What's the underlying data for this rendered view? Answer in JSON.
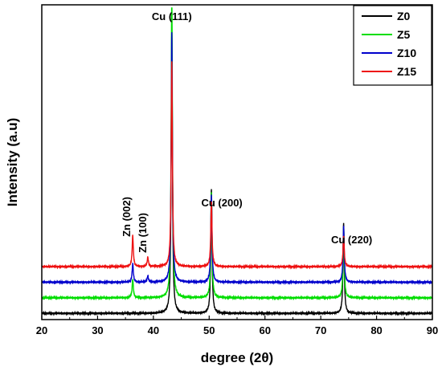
{
  "chart_data": {
    "type": "line",
    "xlabel": "degree (2θ)",
    "ylabel": "Intensity (a.u)",
    "xlim": [
      20,
      90
    ],
    "xticks": [
      20,
      30,
      40,
      50,
      60,
      70,
      80,
      90
    ],
    "y_ticks_shown": false,
    "grid": false,
    "legend_position": "top-right",
    "series": [
      {
        "name": "Z0",
        "color": "#000000",
        "baseline": 0.02,
        "peaks": [
          {
            "x": 43.3,
            "h": 0.92
          },
          {
            "x": 50.4,
            "h": 0.4
          },
          {
            "x": 74.1,
            "h": 0.29
          }
        ]
      },
      {
        "name": "Z5",
        "color": "#00dd00",
        "baseline": 0.07,
        "peaks": [
          {
            "x": 36.3,
            "h": 0.06
          },
          {
            "x": 43.3,
            "h": 1.0
          },
          {
            "x": 50.4,
            "h": 0.34
          },
          {
            "x": 74.1,
            "h": 0.23
          }
        ]
      },
      {
        "name": "Z10",
        "color": "#0000cc",
        "baseline": 0.12,
        "peaks": [
          {
            "x": 36.3,
            "h": 0.06
          },
          {
            "x": 39.0,
            "h": 0.02
          },
          {
            "x": 43.3,
            "h": 0.8
          },
          {
            "x": 50.4,
            "h": 0.28
          },
          {
            "x": 74.1,
            "h": 0.18
          }
        ]
      },
      {
        "name": "Z15",
        "color": "#ee1111",
        "baseline": 0.17,
        "peaks": [
          {
            "x": 36.3,
            "h": 0.1
          },
          {
            "x": 39.0,
            "h": 0.03
          },
          {
            "x": 43.3,
            "h": 0.66
          },
          {
            "x": 50.4,
            "h": 0.21
          },
          {
            "x": 74.1,
            "h": 0.1
          }
        ]
      }
    ],
    "annotations": [
      {
        "text": "Cu (111)",
        "x": 43.3
      },
      {
        "text": "Cu (200)",
        "x": 50.4
      },
      {
        "text": "Cu (220)",
        "x": 74.1
      },
      {
        "text": "Zn (002)",
        "x": 36.3
      },
      {
        "text": "Zn (100)",
        "x": 39.0
      }
    ]
  }
}
